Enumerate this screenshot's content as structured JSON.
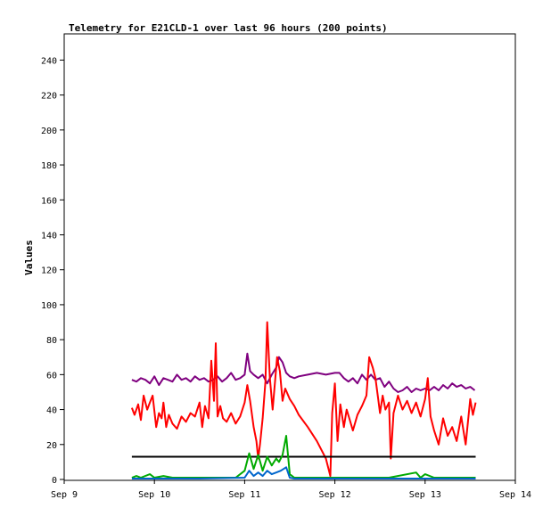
{
  "chart_data": {
    "type": "line",
    "title": "Telemetry for E21CLD-1 over last 96 hours (200 points)",
    "xlabel": "",
    "ylabel": "Values",
    "xlim": [
      0,
      5
    ],
    "ylim": [
      0,
      255
    ],
    "grid": false,
    "legend": "none",
    "x_tick_labels": [
      "Sep 9",
      "Sep 10",
      "Sep 11",
      "Sep 12",
      "Sep 13",
      "Sep 14"
    ],
    "y_ticks": [
      0,
      20,
      40,
      60,
      80,
      100,
      120,
      140,
      160,
      180,
      200,
      220,
      240
    ],
    "x_unit": "days since Sep 9 00:00",
    "series": [
      {
        "color": "#7f007f",
        "points": [
          [
            0.75,
            57
          ],
          [
            0.8,
            56
          ],
          [
            0.85,
            58
          ],
          [
            0.9,
            57
          ],
          [
            0.95,
            55
          ],
          [
            1.0,
            59
          ],
          [
            1.05,
            54
          ],
          [
            1.1,
            58
          ],
          [
            1.15,
            57
          ],
          [
            1.2,
            56
          ],
          [
            1.25,
            60
          ],
          [
            1.3,
            57
          ],
          [
            1.35,
            58
          ],
          [
            1.4,
            56
          ],
          [
            1.45,
            59
          ],
          [
            1.5,
            57
          ],
          [
            1.55,
            58
          ],
          [
            1.6,
            56
          ],
          [
            1.65,
            57
          ],
          [
            1.7,
            59
          ],
          [
            1.75,
            56
          ],
          [
            1.8,
            58
          ],
          [
            1.85,
            61
          ],
          [
            1.9,
            57
          ],
          [
            1.95,
            58
          ],
          [
            2.0,
            60
          ],
          [
            2.03,
            72
          ],
          [
            2.06,
            62
          ],
          [
            2.1,
            60
          ],
          [
            2.15,
            58
          ],
          [
            2.2,
            60
          ],
          [
            2.25,
            55
          ],
          [
            2.3,
            60
          ],
          [
            2.35,
            64
          ],
          [
            2.38,
            70
          ],
          [
            2.42,
            67
          ],
          [
            2.46,
            61
          ],
          [
            2.5,
            59
          ],
          [
            2.55,
            58
          ],
          [
            2.6,
            59
          ],
          [
            2.7,
            60
          ],
          [
            2.8,
            61
          ],
          [
            2.9,
            60
          ],
          [
            3.0,
            61
          ],
          [
            3.05,
            61
          ],
          [
            3.1,
            58
          ],
          [
            3.15,
            56
          ],
          [
            3.2,
            58
          ],
          [
            3.25,
            55
          ],
          [
            3.3,
            60
          ],
          [
            3.35,
            57
          ],
          [
            3.4,
            60
          ],
          [
            3.45,
            57
          ],
          [
            3.5,
            58
          ],
          [
            3.55,
            53
          ],
          [
            3.6,
            56
          ],
          [
            3.65,
            52
          ],
          [
            3.7,
            50
          ],
          [
            3.75,
            51
          ],
          [
            3.8,
            53
          ],
          [
            3.85,
            50
          ],
          [
            3.9,
            52
          ],
          [
            3.95,
            51
          ],
          [
            4.0,
            52
          ],
          [
            4.05,
            51
          ],
          [
            4.1,
            53
          ],
          [
            4.15,
            51
          ],
          [
            4.2,
            54
          ],
          [
            4.25,
            52
          ],
          [
            4.3,
            55
          ],
          [
            4.35,
            53
          ],
          [
            4.4,
            54
          ],
          [
            4.45,
            52
          ],
          [
            4.5,
            53
          ],
          [
            4.55,
            51
          ]
        ]
      },
      {
        "color": "#ff0000",
        "points": [
          [
            0.75,
            41
          ],
          [
            0.78,
            37
          ],
          [
            0.82,
            43
          ],
          [
            0.85,
            34
          ],
          [
            0.88,
            48
          ],
          [
            0.92,
            40
          ],
          [
            0.95,
            44
          ],
          [
            0.98,
            48
          ],
          [
            1.02,
            30
          ],
          [
            1.05,
            38
          ],
          [
            1.08,
            35
          ],
          [
            1.1,
            44
          ],
          [
            1.13,
            30
          ],
          [
            1.16,
            37
          ],
          [
            1.2,
            32
          ],
          [
            1.25,
            29
          ],
          [
            1.3,
            36
          ],
          [
            1.35,
            33
          ],
          [
            1.4,
            38
          ],
          [
            1.45,
            36
          ],
          [
            1.5,
            44
          ],
          [
            1.53,
            30
          ],
          [
            1.56,
            42
          ],
          [
            1.6,
            35
          ],
          [
            1.63,
            68
          ],
          [
            1.66,
            45
          ],
          [
            1.68,
            78
          ],
          [
            1.7,
            36
          ],
          [
            1.73,
            42
          ],
          [
            1.76,
            35
          ],
          [
            1.8,
            33
          ],
          [
            1.85,
            38
          ],
          [
            1.9,
            32
          ],
          [
            1.95,
            36
          ],
          [
            2.0,
            44
          ],
          [
            2.03,
            54
          ],
          [
            2.06,
            45
          ],
          [
            2.1,
            30
          ],
          [
            2.13,
            22
          ],
          [
            2.15,
            12
          ],
          [
            2.17,
            20
          ],
          [
            2.2,
            35
          ],
          [
            2.23,
            56
          ],
          [
            2.25,
            90
          ],
          [
            2.28,
            58
          ],
          [
            2.31,
            40
          ],
          [
            2.34,
            58
          ],
          [
            2.36,
            70
          ],
          [
            2.39,
            62
          ],
          [
            2.42,
            45
          ],
          [
            2.45,
            52
          ],
          [
            2.5,
            46
          ],
          [
            2.55,
            42
          ],
          [
            2.6,
            37
          ],
          [
            2.7,
            30
          ],
          [
            2.8,
            22
          ],
          [
            2.9,
            12
          ],
          [
            2.95,
            2
          ],
          [
            2.97,
            38
          ],
          [
            3.0,
            55
          ],
          [
            3.03,
            22
          ],
          [
            3.06,
            43
          ],
          [
            3.1,
            30
          ],
          [
            3.13,
            40
          ],
          [
            3.16,
            35
          ],
          [
            3.2,
            28
          ],
          [
            3.25,
            37
          ],
          [
            3.3,
            42
          ],
          [
            3.35,
            48
          ],
          [
            3.38,
            70
          ],
          [
            3.42,
            64
          ],
          [
            3.45,
            58
          ],
          [
            3.48,
            46
          ],
          [
            3.5,
            38
          ],
          [
            3.53,
            48
          ],
          [
            3.56,
            40
          ],
          [
            3.6,
            44
          ],
          [
            3.62,
            12
          ],
          [
            3.65,
            38
          ],
          [
            3.7,
            48
          ],
          [
            3.75,
            40
          ],
          [
            3.8,
            45
          ],
          [
            3.85,
            38
          ],
          [
            3.9,
            44
          ],
          [
            3.95,
            36
          ],
          [
            4.0,
            46
          ],
          [
            4.03,
            58
          ],
          [
            4.06,
            36
          ],
          [
            4.1,
            28
          ],
          [
            4.15,
            20
          ],
          [
            4.2,
            35
          ],
          [
            4.25,
            25
          ],
          [
            4.3,
            30
          ],
          [
            4.35,
            22
          ],
          [
            4.4,
            36
          ],
          [
            4.45,
            20
          ],
          [
            4.5,
            46
          ],
          [
            4.53,
            37
          ],
          [
            4.56,
            44
          ]
        ]
      },
      {
        "color": "#000000",
        "points": [
          [
            0.75,
            13
          ],
          [
            4.56,
            13
          ]
        ]
      },
      {
        "color": "#00aa00",
        "points": [
          [
            0.75,
            1
          ],
          [
            0.8,
            2
          ],
          [
            0.85,
            1
          ],
          [
            0.95,
            3
          ],
          [
            1.0,
            1
          ],
          [
            1.1,
            2
          ],
          [
            1.2,
            1
          ],
          [
            1.5,
            1
          ],
          [
            1.7,
            1
          ],
          [
            1.9,
            1
          ],
          [
            2.0,
            5
          ],
          [
            2.05,
            15
          ],
          [
            2.1,
            6
          ],
          [
            2.15,
            14
          ],
          [
            2.2,
            5
          ],
          [
            2.25,
            13
          ],
          [
            2.3,
            8
          ],
          [
            2.35,
            12
          ],
          [
            2.38,
            10
          ],
          [
            2.42,
            14
          ],
          [
            2.46,
            25
          ],
          [
            2.5,
            3
          ],
          [
            2.55,
            1
          ],
          [
            2.8,
            1
          ],
          [
            3.0,
            1
          ],
          [
            3.3,
            1
          ],
          [
            3.6,
            1
          ],
          [
            3.9,
            4
          ],
          [
            3.95,
            1
          ],
          [
            4.0,
            3
          ],
          [
            4.1,
            1
          ],
          [
            4.5,
            1
          ],
          [
            4.56,
            1
          ]
        ]
      },
      {
        "color": "#0066cc",
        "points": [
          [
            0.75,
            0.5
          ],
          [
            1.0,
            0.5
          ],
          [
            1.5,
            0.5
          ],
          [
            2.0,
            1
          ],
          [
            2.05,
            5
          ],
          [
            2.1,
            2
          ],
          [
            2.15,
            4
          ],
          [
            2.2,
            2
          ],
          [
            2.25,
            5
          ],
          [
            2.3,
            3
          ],
          [
            2.35,
            4
          ],
          [
            2.4,
            5
          ],
          [
            2.46,
            7
          ],
          [
            2.5,
            1
          ],
          [
            2.55,
            0.5
          ],
          [
            3.0,
            0.5
          ],
          [
            3.5,
            0.5
          ],
          [
            4.0,
            0.5
          ],
          [
            4.56,
            0.5
          ]
        ]
      }
    ]
  }
}
